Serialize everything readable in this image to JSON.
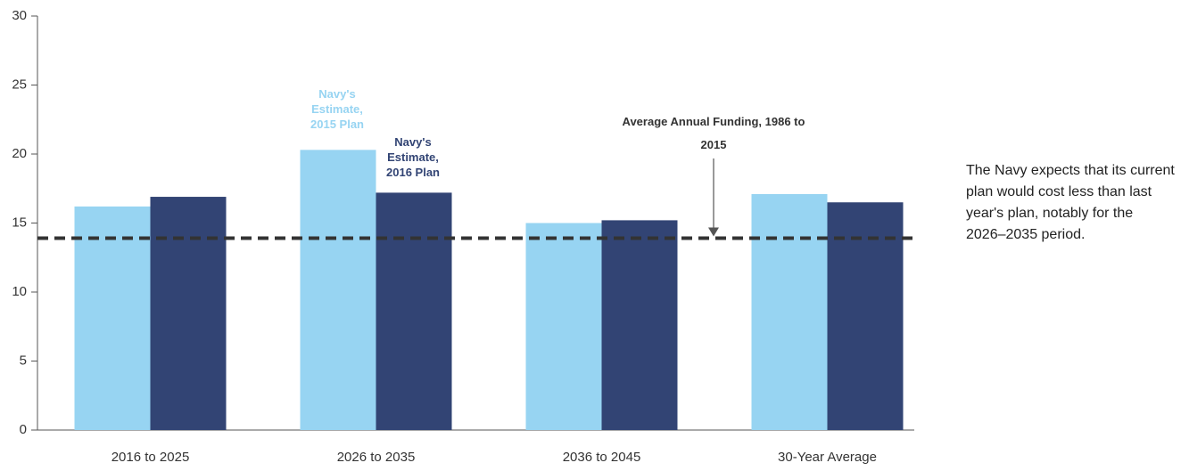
{
  "chart_data": {
    "type": "bar",
    "categories": [
      "2016 to 2025",
      "2026 to 2035",
      "2036 to 2045",
      "30-Year Average"
    ],
    "series": [
      {
        "name": "Navy's Estimate, 2015 Plan",
        "color": "#97d4f2",
        "values": [
          16.2,
          20.3,
          15.0,
          17.1
        ]
      },
      {
        "name": "Navy's Estimate, 2016 Plan",
        "color": "#324474",
        "values": [
          16.9,
          17.2,
          15.2,
          16.5
        ]
      }
    ],
    "ylim": [
      0,
      30
    ],
    "yticks": [
      0,
      5,
      10,
      15,
      20,
      25,
      30
    ],
    "reference_line": {
      "value": 13.9,
      "label": "Average Annual Funding, 1986 to 2015",
      "color": "#333333"
    },
    "note": "The Navy expects that its current plan would cost less than last year's plan, notably for the 2026–2035 period."
  }
}
